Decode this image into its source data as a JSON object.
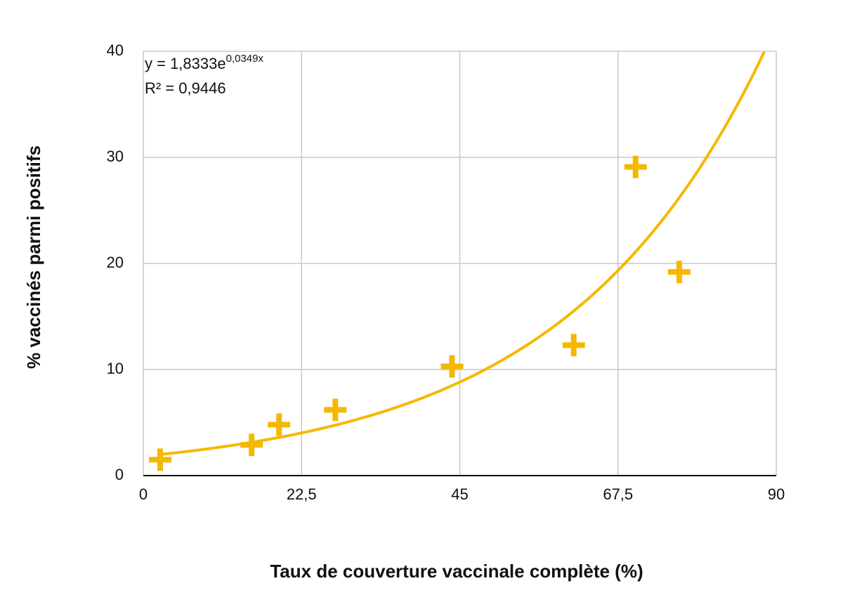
{
  "chart_data": {
    "type": "scatter",
    "x_axis_label": "Taux de couverture vaccinale complète (%)",
    "y_axis_label": "% vaccinés parmi positifs",
    "x": [
      2.4,
      15.4,
      19.3,
      27.3,
      43.9,
      61.2,
      70.0,
      76.2
    ],
    "values": [
      1.5,
      2.9,
      4.8,
      6.2,
      10.3,
      12.3,
      29.1,
      19.2
    ],
    "color": "#f5b800",
    "marker": "plus",
    "xlim": [
      0,
      90
    ],
    "xticks": [
      0,
      {
        "value": 22.5,
        "label": "22,5"
      },
      45,
      {
        "value": 67.5,
        "label": "67,5"
      },
      90
    ],
    "ylim": [
      0,
      40
    ],
    "yticks": [
      0,
      10,
      20,
      30,
      40
    ],
    "grid": true,
    "trendline": {
      "type": "exponential",
      "a": 1.8333,
      "b": 0.0349,
      "x_range": [
        2.4,
        88.3
      ],
      "equation": "y = 1,8333e",
      "equation_exponent": "0,0349x",
      "r_squared": "R² = 0,9446"
    }
  }
}
